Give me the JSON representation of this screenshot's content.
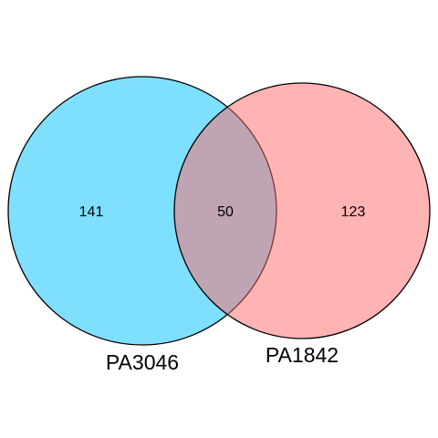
{
  "sets": [
    {
      "name": "PA3046",
      "only_count": "141",
      "color": "#00BFFF",
      "fill_opacity": 0.5
    },
    {
      "name": "PA1842",
      "only_count": "123",
      "color": "#FF6A6A",
      "fill_opacity": 0.5
    }
  ],
  "intersection": {
    "count": "50"
  },
  "outline_color": "#000000",
  "background": "#FFFFFF"
}
